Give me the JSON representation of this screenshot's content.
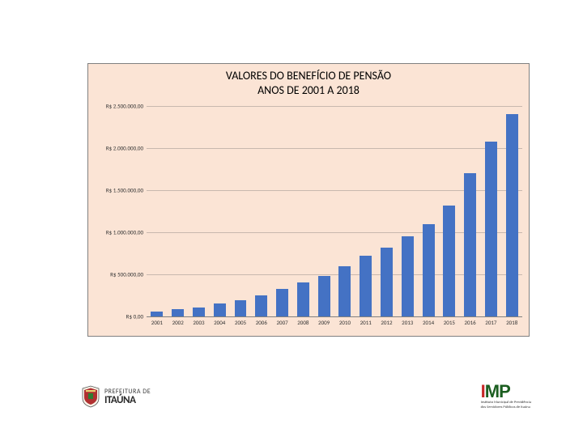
{
  "chart": {
    "type": "bar",
    "title_line1": "VALORES DO BENEFÍCIO DE PENSÃO",
    "title_line2": "ANOS DE 2001 A 2018",
    "title_fontsize": 14,
    "background_color": "#fbe4d5",
    "border_color": "#808080",
    "grid_color": "#c8b8ae",
    "bar_color": "#4472c4",
    "text_color": "#333333",
    "label_fontsize": 7,
    "ylim": [
      0,
      2500000
    ],
    "ytick_step": 500000,
    "yticks": [
      {
        "v": 0,
        "label": "R$ 0,00"
      },
      {
        "v": 500000,
        "label": "R$ 500.000,00"
      },
      {
        "v": 1000000,
        "label": "R$ 1.000.000,00"
      },
      {
        "v": 1500000,
        "label": "R$ 1.500.000,00"
      },
      {
        "v": 2000000,
        "label": "R$ 2.000.000,00"
      },
      {
        "v": 2500000,
        "label": "R$ 2.500.000,00"
      }
    ],
    "categories": [
      "2001",
      "2002",
      "2003",
      "2004",
      "2005",
      "2006",
      "2007",
      "2008",
      "2009",
      "2010",
      "2011",
      "2012",
      "2013",
      "2014",
      "2015",
      "2016",
      "2017",
      "2018"
    ],
    "values": [
      60000,
      85000,
      110000,
      150000,
      190000,
      250000,
      330000,
      400000,
      480000,
      600000,
      720000,
      820000,
      950000,
      1100000,
      1320000,
      1700000,
      2080000,
      2400000
    ],
    "bar_width": 0.58
  },
  "logos": {
    "left": {
      "line1": "PREFEITURA DE",
      "line2": "ITAÚNA",
      "crest_colors": {
        "shield": "#b03030",
        "accent": "#2e7d32",
        "outline": "#555555"
      }
    },
    "right": {
      "letters": "IMP",
      "color_i": "#c62828",
      "color_mp": "#1b5e20",
      "sub1": "Instituto Municipal de Previdência",
      "sub2": "dos Servidores Públicos de Itaúna"
    }
  }
}
